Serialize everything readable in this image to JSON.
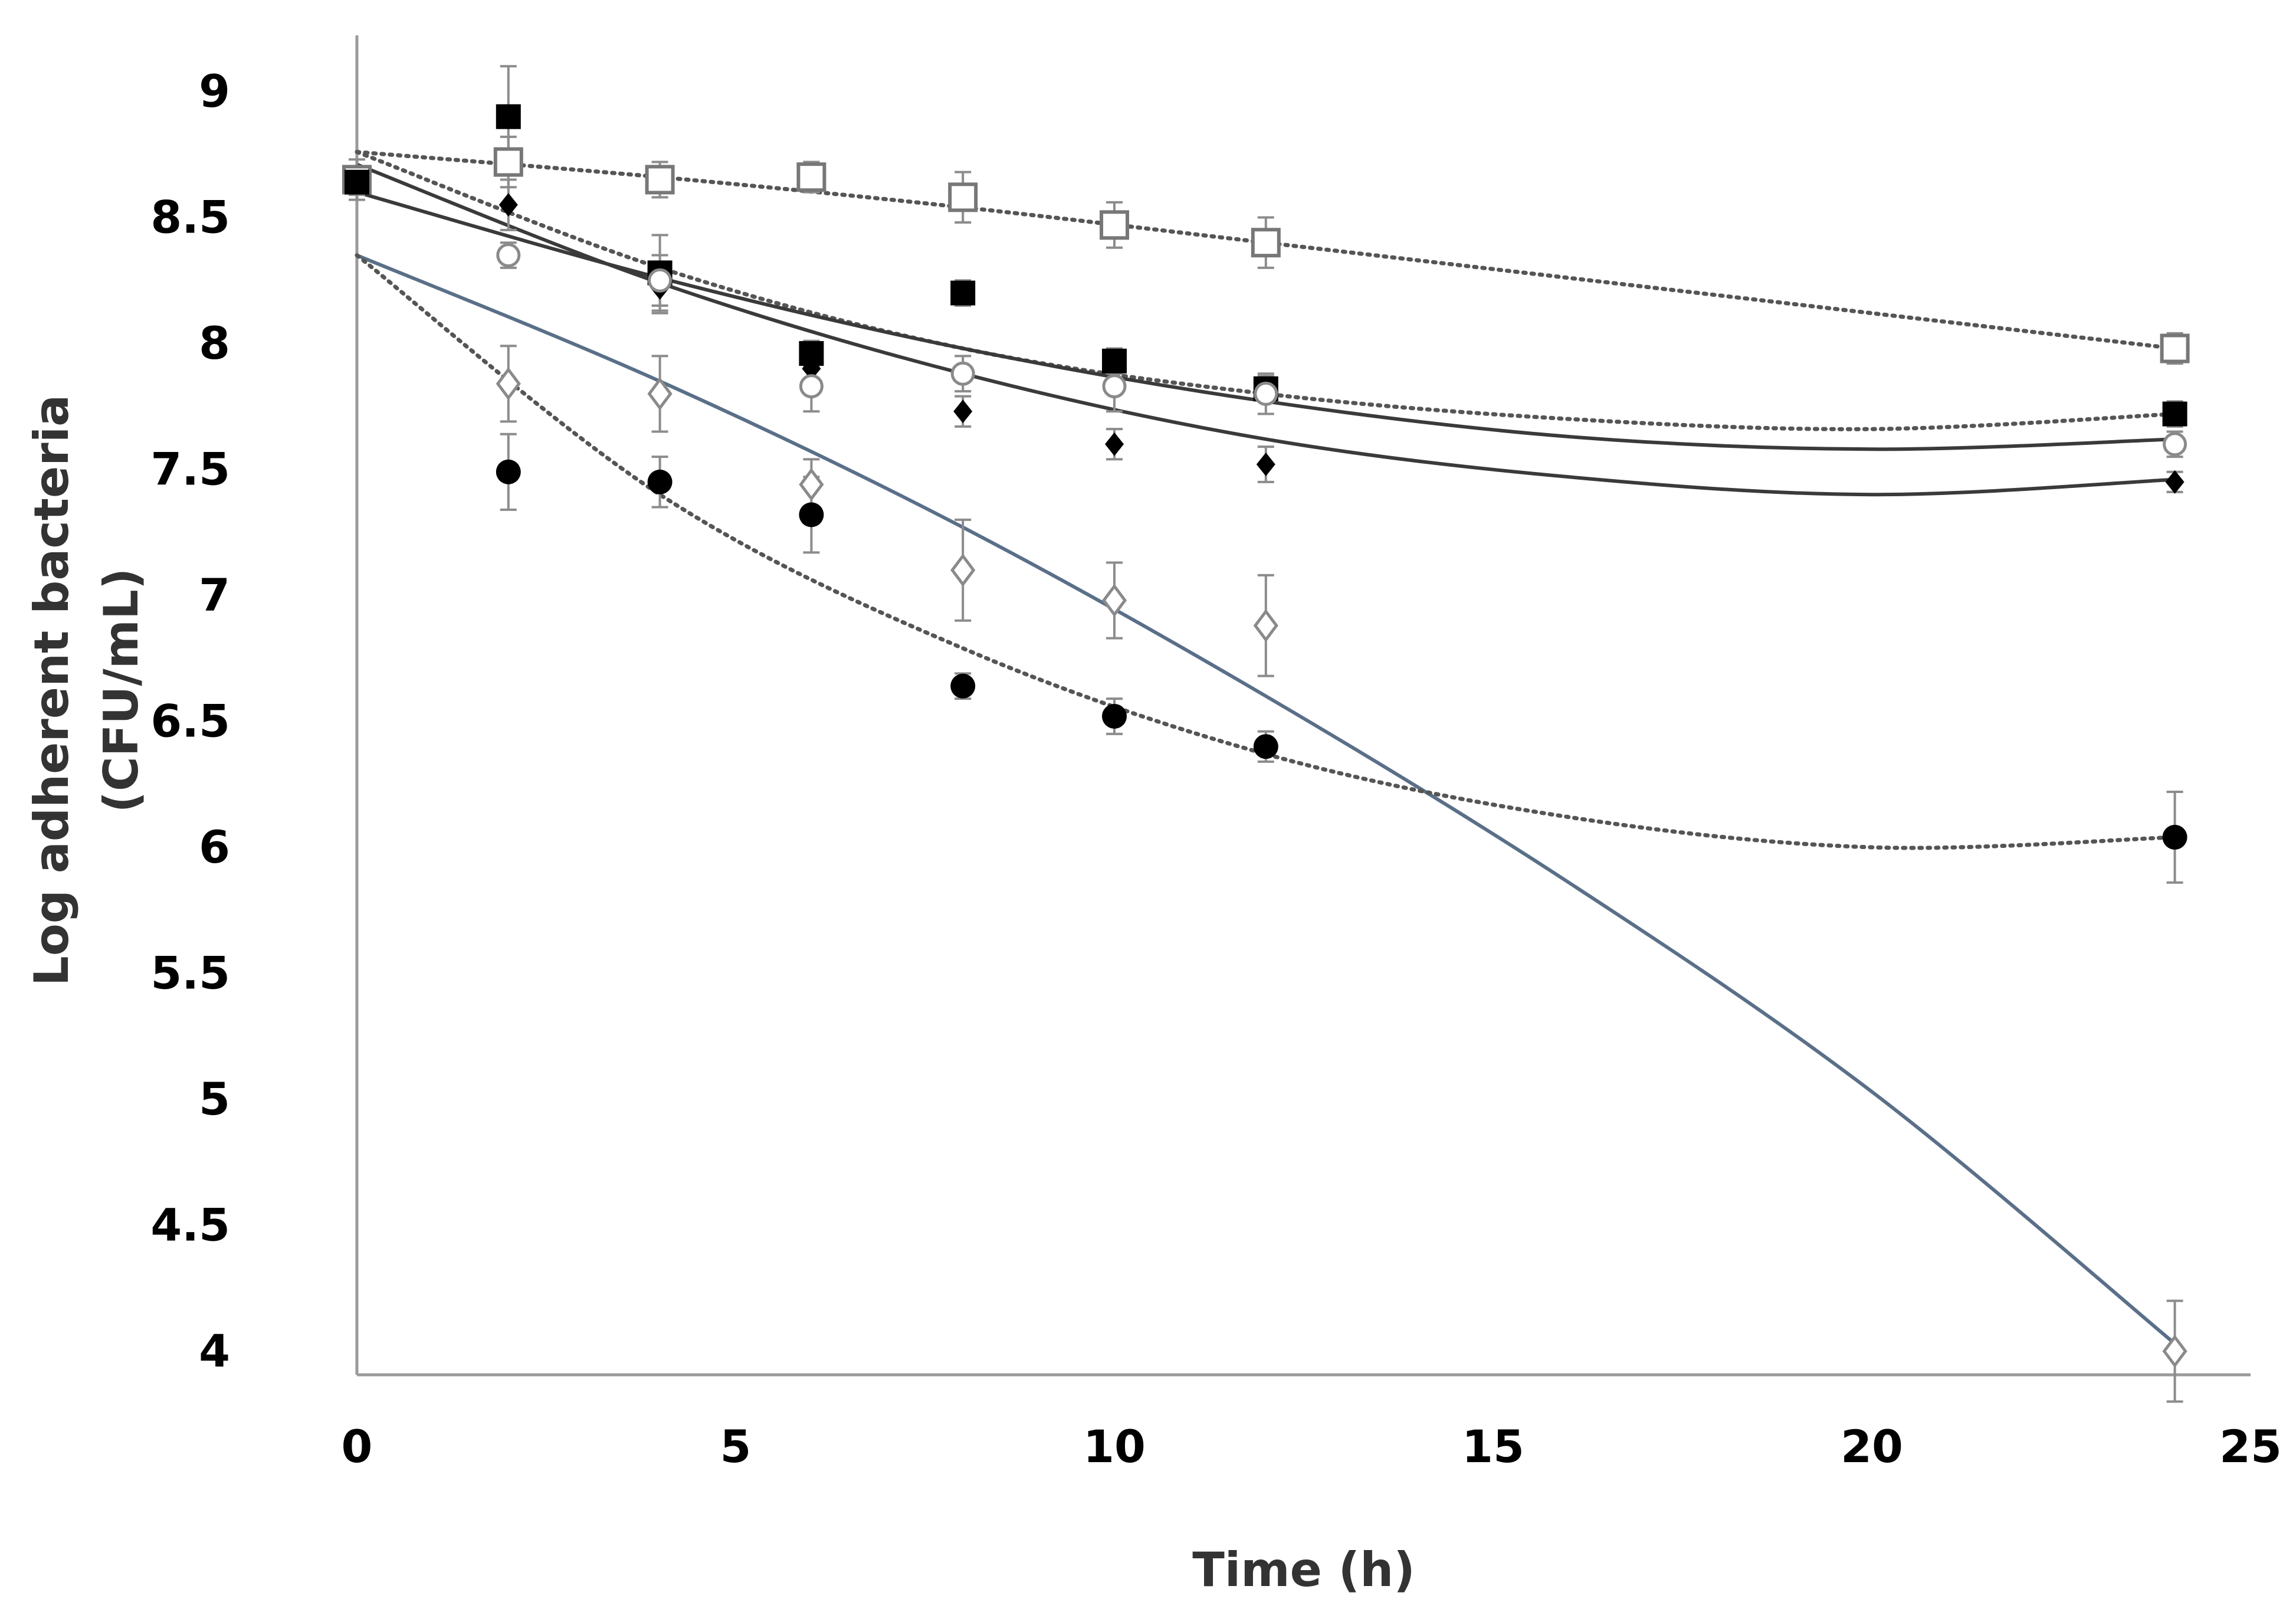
{
  "chart_data": {
    "type": "scatter",
    "title": "",
    "xlabel": "Time (h)",
    "ylabel_lines": [
      "Log adherent bacteria",
      "(CFU/mL)"
    ],
    "xlim": [
      0,
      25
    ],
    "ylim": [
      4,
      9
    ],
    "xticks": [
      "0",
      "5",
      "10",
      "15",
      "20",
      "25"
    ],
    "yticks": [
      "9",
      "8.5",
      "8",
      "7.5",
      "7",
      "6.5",
      "6",
      "5.5",
      "5",
      "4.5",
      "4"
    ],
    "grid": false,
    "legend": "none",
    "series": [
      {
        "name": "open square",
        "marker": "square-open",
        "x": [
          0,
          2,
          4,
          6,
          8,
          10,
          12,
          24
        ],
        "y": [
          8.65,
          8.72,
          8.65,
          8.66,
          8.58,
          8.47,
          8.4,
          7.98
        ],
        "err": [
          0.08,
          0.1,
          0.07,
          0.06,
          0.1,
          0.09,
          0.1,
          0.06
        ],
        "fit": {
          "style": "dotted",
          "x": [
            0,
            4,
            8,
            12,
            16,
            20,
            24
          ],
          "y": [
            8.76,
            8.66,
            8.54,
            8.4,
            8.26,
            8.12,
            7.98
          ]
        }
      },
      {
        "name": "filled square",
        "marker": "square-filled",
        "x": [
          0,
          2,
          4,
          6,
          8,
          10,
          12,
          24
        ],
        "y": [
          8.64,
          8.9,
          8.28,
          7.96,
          8.2,
          7.93,
          7.82,
          7.72
        ],
        "err": [
          0.05,
          0.2,
          0.15,
          0.05,
          0.05,
          0.05,
          0.05,
          0.05
        ],
        "fit": {
          "style": "dotted",
          "x": [
            0,
            4,
            8,
            12,
            16,
            20,
            24
          ],
          "y": [
            8.76,
            8.3,
            7.98,
            7.8,
            7.7,
            7.66,
            7.72
          ]
        }
      },
      {
        "name": "filled diamond",
        "marker": "diamond-filled",
        "x": [
          2,
          4,
          6,
          8,
          10,
          12,
          24
        ],
        "y": [
          8.55,
          8.22,
          7.9,
          7.73,
          7.6,
          7.52,
          7.45
        ],
        "err": [
          0.1,
          0.1,
          0.1,
          0.06,
          0.06,
          0.07,
          0.04
        ],
        "fit": {
          "style": "solid",
          "x": [
            0,
            4,
            8,
            12,
            16,
            20,
            24
          ],
          "y": [
            8.71,
            8.24,
            7.88,
            7.62,
            7.47,
            7.4,
            7.46
          ]
        }
      },
      {
        "name": "open circle",
        "marker": "circle-open",
        "x": [
          2,
          4,
          6,
          8,
          10,
          12,
          24
        ],
        "y": [
          8.35,
          8.25,
          7.83,
          7.88,
          7.83,
          7.8,
          7.6
        ],
        "err": [
          0.05,
          0.1,
          0.1,
          0.07,
          0.1,
          0.08,
          0.05
        ],
        "fit": {
          "style": "solid",
          "x": [
            0,
            4,
            8,
            12,
            16,
            20,
            24
          ],
          "y": [
            8.6,
            8.26,
            7.98,
            7.77,
            7.63,
            7.58,
            7.62
          ]
        }
      },
      {
        "name": "open diamond",
        "marker": "diamond-open",
        "x": [
          2,
          4,
          6,
          8,
          10,
          12,
          24
        ],
        "y": [
          7.84,
          7.8,
          7.44,
          7.1,
          6.98,
          6.88,
          4.0
        ],
        "err": [
          0.15,
          0.15,
          0.1,
          0.2,
          0.15,
          0.2,
          0.2
        ],
        "fit": {
          "style": "solid-blue",
          "x": [
            0,
            4,
            8,
            12,
            16,
            20,
            24
          ],
          "y": [
            8.35,
            7.85,
            7.27,
            6.6,
            5.86,
            5.03,
            4.03
          ]
        }
      },
      {
        "name": "filled circle",
        "marker": "circle-filled",
        "x": [
          2,
          4,
          6,
          8,
          10,
          12,
          24
        ],
        "y": [
          7.49,
          7.45,
          7.32,
          6.64,
          6.52,
          6.4,
          6.04
        ],
        "err": [
          0.15,
          0.1,
          0.15,
          0.05,
          0.07,
          0.06,
          0.18
        ],
        "fit": {
          "style": "dotted",
          "x": [
            0,
            4,
            8,
            12,
            16,
            20,
            24
          ],
          "y": [
            8.35,
            7.4,
            6.79,
            6.37,
            6.12,
            6.0,
            6.04
          ]
        }
      }
    ]
  }
}
